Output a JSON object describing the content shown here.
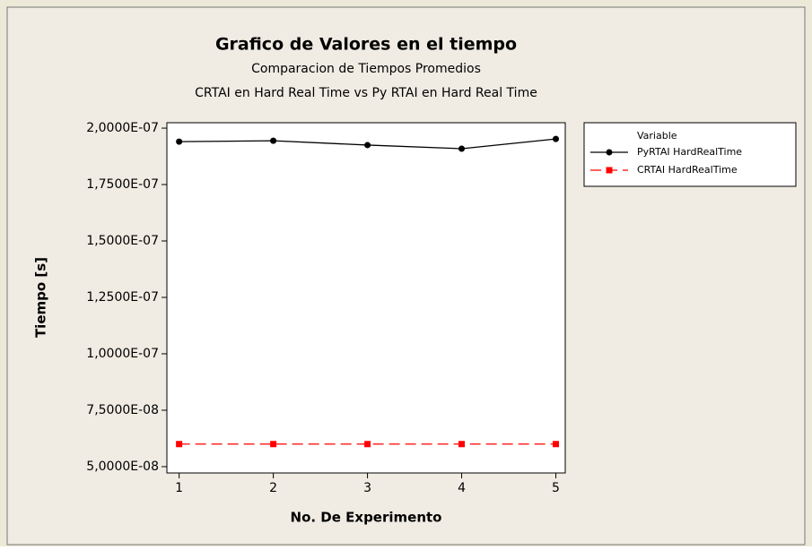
{
  "chart_data": {
    "type": "line",
    "title": "Grafico de Valores en el tiempo",
    "subtitle": [
      "Comparacion de Tiempos Promedios",
      "CRTAI en Hard Real Time vs Py RTAI en Hard Real Time"
    ],
    "xlabel": "No. De Experimento",
    "ylabel": "Tiempo [s]",
    "x": [
      1,
      2,
      3,
      4,
      5
    ],
    "series": [
      {
        "name": "PyRTAI HardRealTime",
        "color": "#000000",
        "marker": "circle",
        "linestyle": "solid",
        "values": [
          1.94e-07,
          1.944e-07,
          1.925e-07,
          1.909e-07,
          1.952e-07
        ]
      },
      {
        "name": "CRTAI HardRealTime",
        "color": "#ff0000",
        "marker": "square",
        "linestyle": "dashed",
        "values": [
          6e-08,
          6e-08,
          6e-08,
          6e-08,
          6e-08
        ]
      }
    ],
    "xlim": [
      0.87,
      5.1
    ],
    "xticks": [
      1,
      2,
      3,
      4,
      5
    ],
    "ylim": [
      4.72e-08,
      2.024e-07
    ],
    "yticks": [
      {
        "value": 5e-08,
        "label": "5,0000E-08"
      },
      {
        "value": 7.5e-08,
        "label": "7,5000E-08"
      },
      {
        "value": 1e-07,
        "label": "1,0000E-07"
      },
      {
        "value": 1.25e-07,
        "label": "1,2500E-07"
      },
      {
        "value": 1.5e-07,
        "label": "1,5000E-07"
      },
      {
        "value": 1.75e-07,
        "label": "1,7500E-07"
      },
      {
        "value": 2e-07,
        "label": "2,0000E-07"
      }
    ],
    "legend_title": "Variable",
    "legend": "outside-right-top"
  }
}
